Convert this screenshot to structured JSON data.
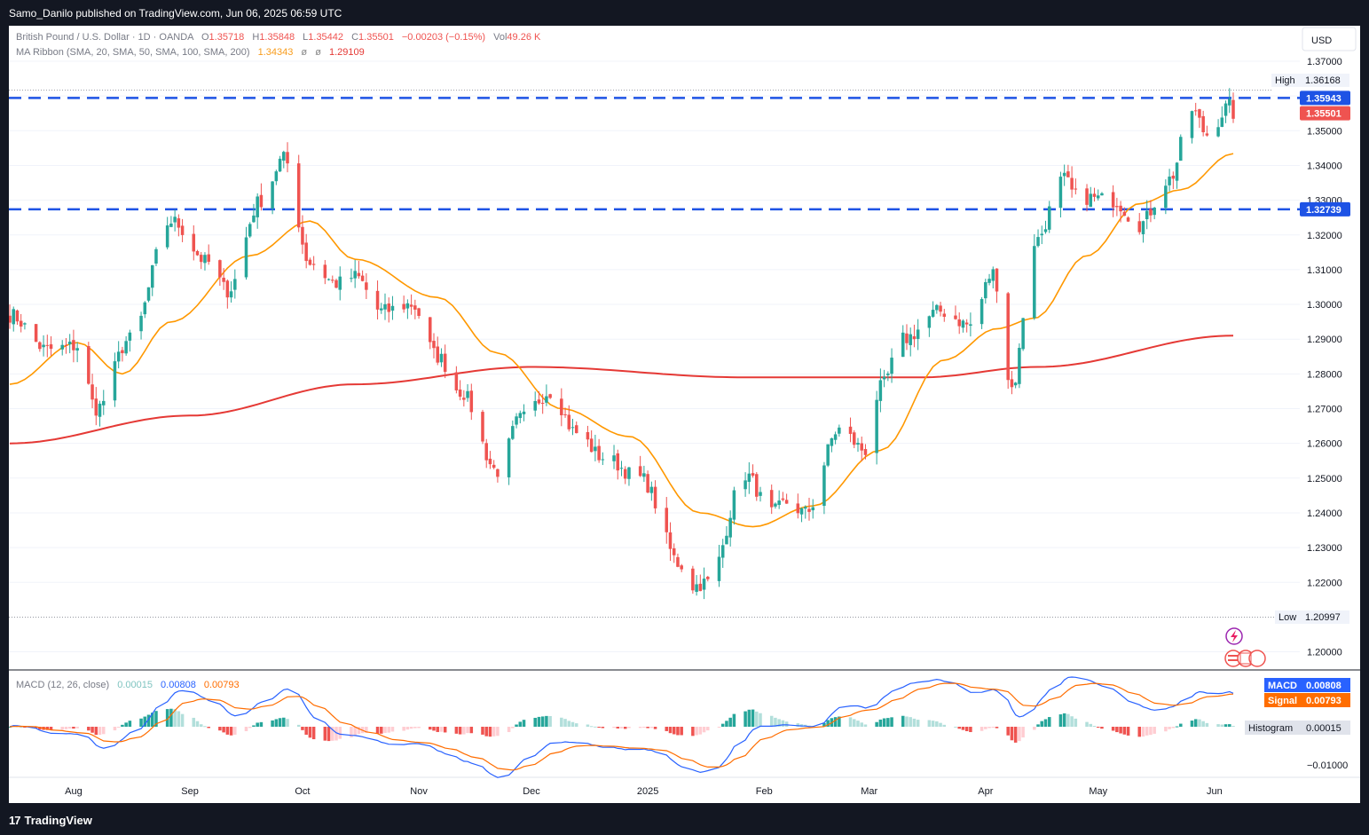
{
  "header": {
    "published": "Samo_Danilo published on TradingView.com, Jun 06, 2025 06:59 UTC"
  },
  "footer": {
    "brand": "TradingView",
    "logo_glyph": "17"
  },
  "legend": {
    "symbol": "British Pound / U.S. Dollar · 1D · OANDA",
    "ohlc": [
      {
        "k": "O",
        "v": "1.35718"
      },
      {
        "k": "H",
        "v": "1.35848"
      },
      {
        "k": "L",
        "v": "1.35442"
      },
      {
        "k": "C",
        "v": "1.35501"
      }
    ],
    "change": "−0.00203 (−0.15%)",
    "vol_label": "Vol",
    "vol": "49.26 K",
    "ma_label": "MA Ribbon (SMA, 20, SMA, 50, SMA, 100, SMA, 200)",
    "ma_values": [
      {
        "v": "1.34343",
        "color": "#f89c1c"
      },
      {
        "v": "ø",
        "color": "#888888"
      },
      {
        "v": "ø",
        "color": "#888888"
      },
      {
        "v": "1.29109",
        "color": "#e53935"
      }
    ]
  },
  "currency": "USD",
  "colors": {
    "up": "#26a69a",
    "down": "#ef5350",
    "ma20": "#ff9800",
    "ma200": "#e53935",
    "level": "#1e53e5",
    "macd": "#2962ff",
    "signal": "#ff6d00"
  },
  "chart_data": {
    "type": "candlestick",
    "title": "British Pound / U.S. Dollar · 1D · OANDA",
    "y_ticks": [
      "1.37000",
      "1.36000",
      "1.35000",
      "1.34000",
      "1.33000",
      "1.32000",
      "1.31000",
      "1.30000",
      "1.29000",
      "1.28000",
      "1.27000",
      "1.26000",
      "1.25000",
      "1.24000",
      "1.23000",
      "1.22000",
      "1.20000"
    ],
    "x_ticks": [
      "Aug",
      "Sep",
      "Oct",
      "Nov",
      "Dec",
      "2025",
      "Feb",
      "Mar",
      "Apr",
      "May",
      "Jun"
    ],
    "ylim": [
      1.196,
      1.372
    ],
    "high": {
      "label": "High",
      "value": "1.36168"
    },
    "low": {
      "label": "Low",
      "value": "1.20997"
    },
    "price_labels": [
      {
        "value": "1.35943",
        "color": "#1e53e5"
      },
      {
        "value": "1.35501",
        "color": "#ef5350"
      },
      {
        "value": "1.32739",
        "color": "#1e53e5"
      }
    ],
    "levels": [
      1.35943,
      1.32739
    ],
    "series": [
      {
        "name": "SMA 20",
        "color": "#ff9800"
      },
      {
        "name": "SMA 200",
        "color": "#e53935"
      }
    ],
    "anchors": [
      [
        "2024-07-15",
        1.297
      ],
      [
        "2024-07-25",
        1.287
      ],
      [
        "2024-08-02",
        1.288
      ],
      [
        "2024-08-07",
        1.27
      ],
      [
        "2024-08-16",
        1.29
      ],
      [
        "2024-08-27",
        1.324
      ],
      [
        "2024-09-06",
        1.312
      ],
      [
        "2024-09-11",
        1.304
      ],
      [
        "2024-09-20",
        1.33
      ],
      [
        "2024-09-26",
        1.342
      ],
      [
        "2024-10-03",
        1.312
      ],
      [
        "2024-10-10",
        1.306
      ],
      [
        "2024-10-15",
        1.308
      ],
      [
        "2024-10-22",
        1.298
      ],
      [
        "2024-10-30",
        1.3
      ],
      [
        "2024-11-06",
        1.285
      ],
      [
        "2024-11-12",
        1.275
      ],
      [
        "2024-11-22",
        1.252
      ],
      [
        "2024-11-28",
        1.267
      ],
      [
        "2024-12-06",
        1.275
      ],
      [
        "2024-12-13",
        1.263
      ],
      [
        "2024-12-20",
        1.256
      ],
      [
        "2024-12-30",
        1.25
      ],
      [
        "2025-01-10",
        1.225
      ],
      [
        "2025-01-13",
        1.219
      ],
      [
        "2025-01-17",
        1.22
      ],
      [
        "2025-01-27",
        1.251
      ],
      [
        "2025-02-03",
        1.24
      ],
      [
        "2025-02-07",
        1.243
      ],
      [
        "2025-02-12",
        1.24
      ],
      [
        "2025-02-21",
        1.264
      ],
      [
        "2025-02-28",
        1.258
      ],
      [
        "2025-03-04",
        1.276
      ],
      [
        "2025-03-10",
        1.29
      ],
      [
        "2025-03-20",
        1.298
      ],
      [
        "2025-03-28",
        1.294
      ],
      [
        "2025-04-03",
        1.309
      ],
      [
        "2025-04-08",
        1.276
      ],
      [
        "2025-04-14",
        1.318
      ],
      [
        "2025-04-22",
        1.336
      ],
      [
        "2025-04-25",
        1.331
      ],
      [
        "2025-05-05",
        1.33
      ],
      [
        "2025-05-12",
        1.323
      ],
      [
        "2025-05-20",
        1.336
      ],
      [
        "2025-05-26",
        1.356
      ],
      [
        "2025-05-30",
        1.349
      ],
      [
        "2025-06-05",
        1.357
      ],
      [
        "2025-06-06",
        1.355
      ]
    ],
    "ma20_anchors": [
      [
        "2024-07-15",
        1.277
      ],
      [
        "2024-08-02",
        1.289
      ],
      [
        "2024-08-14",
        1.28
      ],
      [
        "2024-08-27",
        1.295
      ],
      [
        "2024-09-17",
        1.314
      ],
      [
        "2024-10-03",
        1.324
      ],
      [
        "2024-10-15",
        1.313
      ],
      [
        "2024-11-06",
        1.302
      ],
      [
        "2024-11-22",
        1.286
      ],
      [
        "2024-12-09",
        1.27
      ],
      [
        "2024-12-27",
        1.262
      ],
      [
        "2025-01-15",
        1.24
      ],
      [
        "2025-01-29",
        1.236
      ],
      [
        "2025-02-14",
        1.242
      ],
      [
        "2025-03-04",
        1.258
      ],
      [
        "2025-03-21",
        1.284
      ],
      [
        "2025-04-04",
        1.293
      ],
      [
        "2025-04-14",
        1.296
      ],
      [
        "2025-04-28",
        1.314
      ],
      [
        "2025-05-12",
        1.329
      ],
      [
        "2025-05-23",
        1.333
      ],
      [
        "2025-06-06",
        1.3434
      ]
    ],
    "ma200_anchors": [
      [
        "2024-07-15",
        1.26
      ],
      [
        "2024-09-01",
        1.268
      ],
      [
        "2024-10-15",
        1.277
      ],
      [
        "2024-12-01",
        1.282
      ],
      [
        "2025-01-27",
        1.279
      ],
      [
        "2025-03-15",
        1.279
      ],
      [
        "2025-04-15",
        1.282
      ],
      [
        "2025-06-06",
        1.291
      ]
    ],
    "macd": {
      "label": "MACD (12, 26, close)",
      "values": [
        {
          "v": "0.00015",
          "color": "#7fc4c0"
        },
        {
          "v": "0.00808",
          "color": "#2962ff"
        },
        {
          "v": "0.00793",
          "color": "#ff6d00"
        }
      ],
      "ticks": [
        "−0.01000"
      ],
      "ylim": [
        -0.0135,
        0.0135
      ],
      "badges": [
        {
          "label": "MACD",
          "value": "0.00808",
          "color": "#2962ff"
        },
        {
          "label": "Signal",
          "value": "0.00793",
          "color": "#ff6d00"
        },
        {
          "label": "Histogram",
          "value": "0.00015",
          "color": "#e0e3eb"
        }
      ]
    }
  }
}
